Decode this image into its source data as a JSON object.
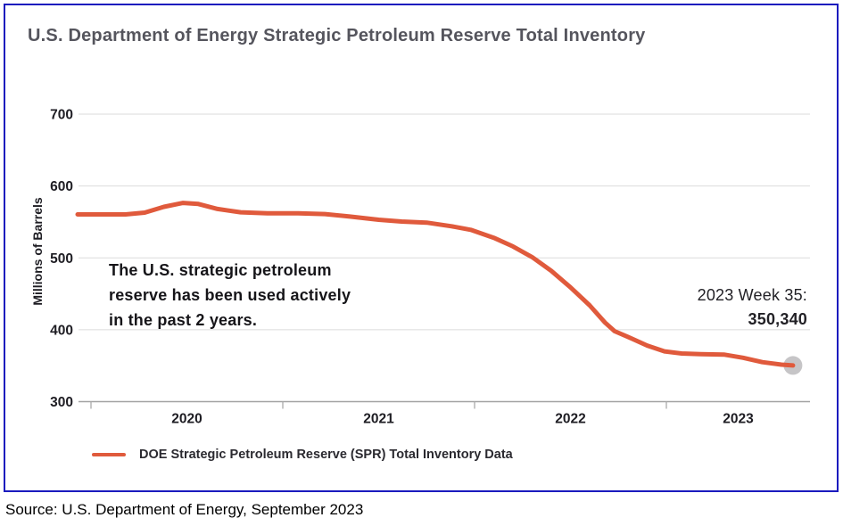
{
  "header": {
    "title": "U.S. Department of Energy Strategic Petroleum Reserve Total Inventory"
  },
  "chart_data": {
    "type": "line",
    "title": "U.S. Department of Energy Strategic Petroleum Reserve Total Inventory",
    "xlabel": "",
    "ylabel": "Millions of Barrels",
    "ylim": [
      300,
      700
    ],
    "grid": "horizontal",
    "legend_position": "bottom",
    "y_ticks": [
      300,
      400,
      500,
      600,
      700
    ],
    "x_ticks": [
      {
        "value": 2020,
        "label": "2020"
      },
      {
        "value": 2021,
        "label": "2021"
      },
      {
        "value": 2022,
        "label": "2022"
      },
      {
        "value": 2023,
        "label": "2023"
      }
    ],
    "series": [
      {
        "name": "DOE Strategic Petroleum Reserve (SPR) Total Inventory Data",
        "color": "#E05A3C",
        "points": [
          [
            2019.93,
            560.5
          ],
          [
            2020.05,
            560.5
          ],
          [
            2020.18,
            560.5
          ],
          [
            2020.28,
            563
          ],
          [
            2020.38,
            571
          ],
          [
            2020.48,
            576.5
          ],
          [
            2020.56,
            575
          ],
          [
            2020.66,
            568
          ],
          [
            2020.78,
            563.5
          ],
          [
            2020.92,
            562
          ],
          [
            2021.08,
            562
          ],
          [
            2021.22,
            561
          ],
          [
            2021.35,
            557.5
          ],
          [
            2021.5,
            553
          ],
          [
            2021.62,
            550.5
          ],
          [
            2021.75,
            549
          ],
          [
            2021.88,
            544
          ],
          [
            2021.98,
            539
          ],
          [
            2022.1,
            528
          ],
          [
            2022.2,
            516
          ],
          [
            2022.3,
            501
          ],
          [
            2022.4,
            482
          ],
          [
            2022.5,
            459
          ],
          [
            2022.6,
            434
          ],
          [
            2022.68,
            410
          ],
          [
            2022.73,
            398
          ],
          [
            2022.8,
            390
          ],
          [
            2022.9,
            378
          ],
          [
            2022.99,
            370
          ],
          [
            2023.08,
            367
          ],
          [
            2023.18,
            366
          ],
          [
            2023.3,
            365.5
          ],
          [
            2023.4,
            361
          ],
          [
            2023.5,
            355
          ],
          [
            2023.6,
            351.5
          ],
          [
            2023.66,
            350.34
          ]
        ]
      }
    ],
    "endpoint": {
      "x": 2023.66,
      "y": 350.34,
      "label_line1": "2023 Week 35:",
      "label_line2": "350,340",
      "marker_color": "#C6C5C7"
    },
    "annotation": "The U.S. strategic petroleum\nreserve has been used actively\nin the past 2 years.",
    "colors": {
      "grid": "#DBDBDB",
      "axis": "#A3A3A3",
      "tick": "#ABABAB"
    }
  },
  "footer": {
    "source": "Source: U.S. Department of Energy, September 2023"
  }
}
